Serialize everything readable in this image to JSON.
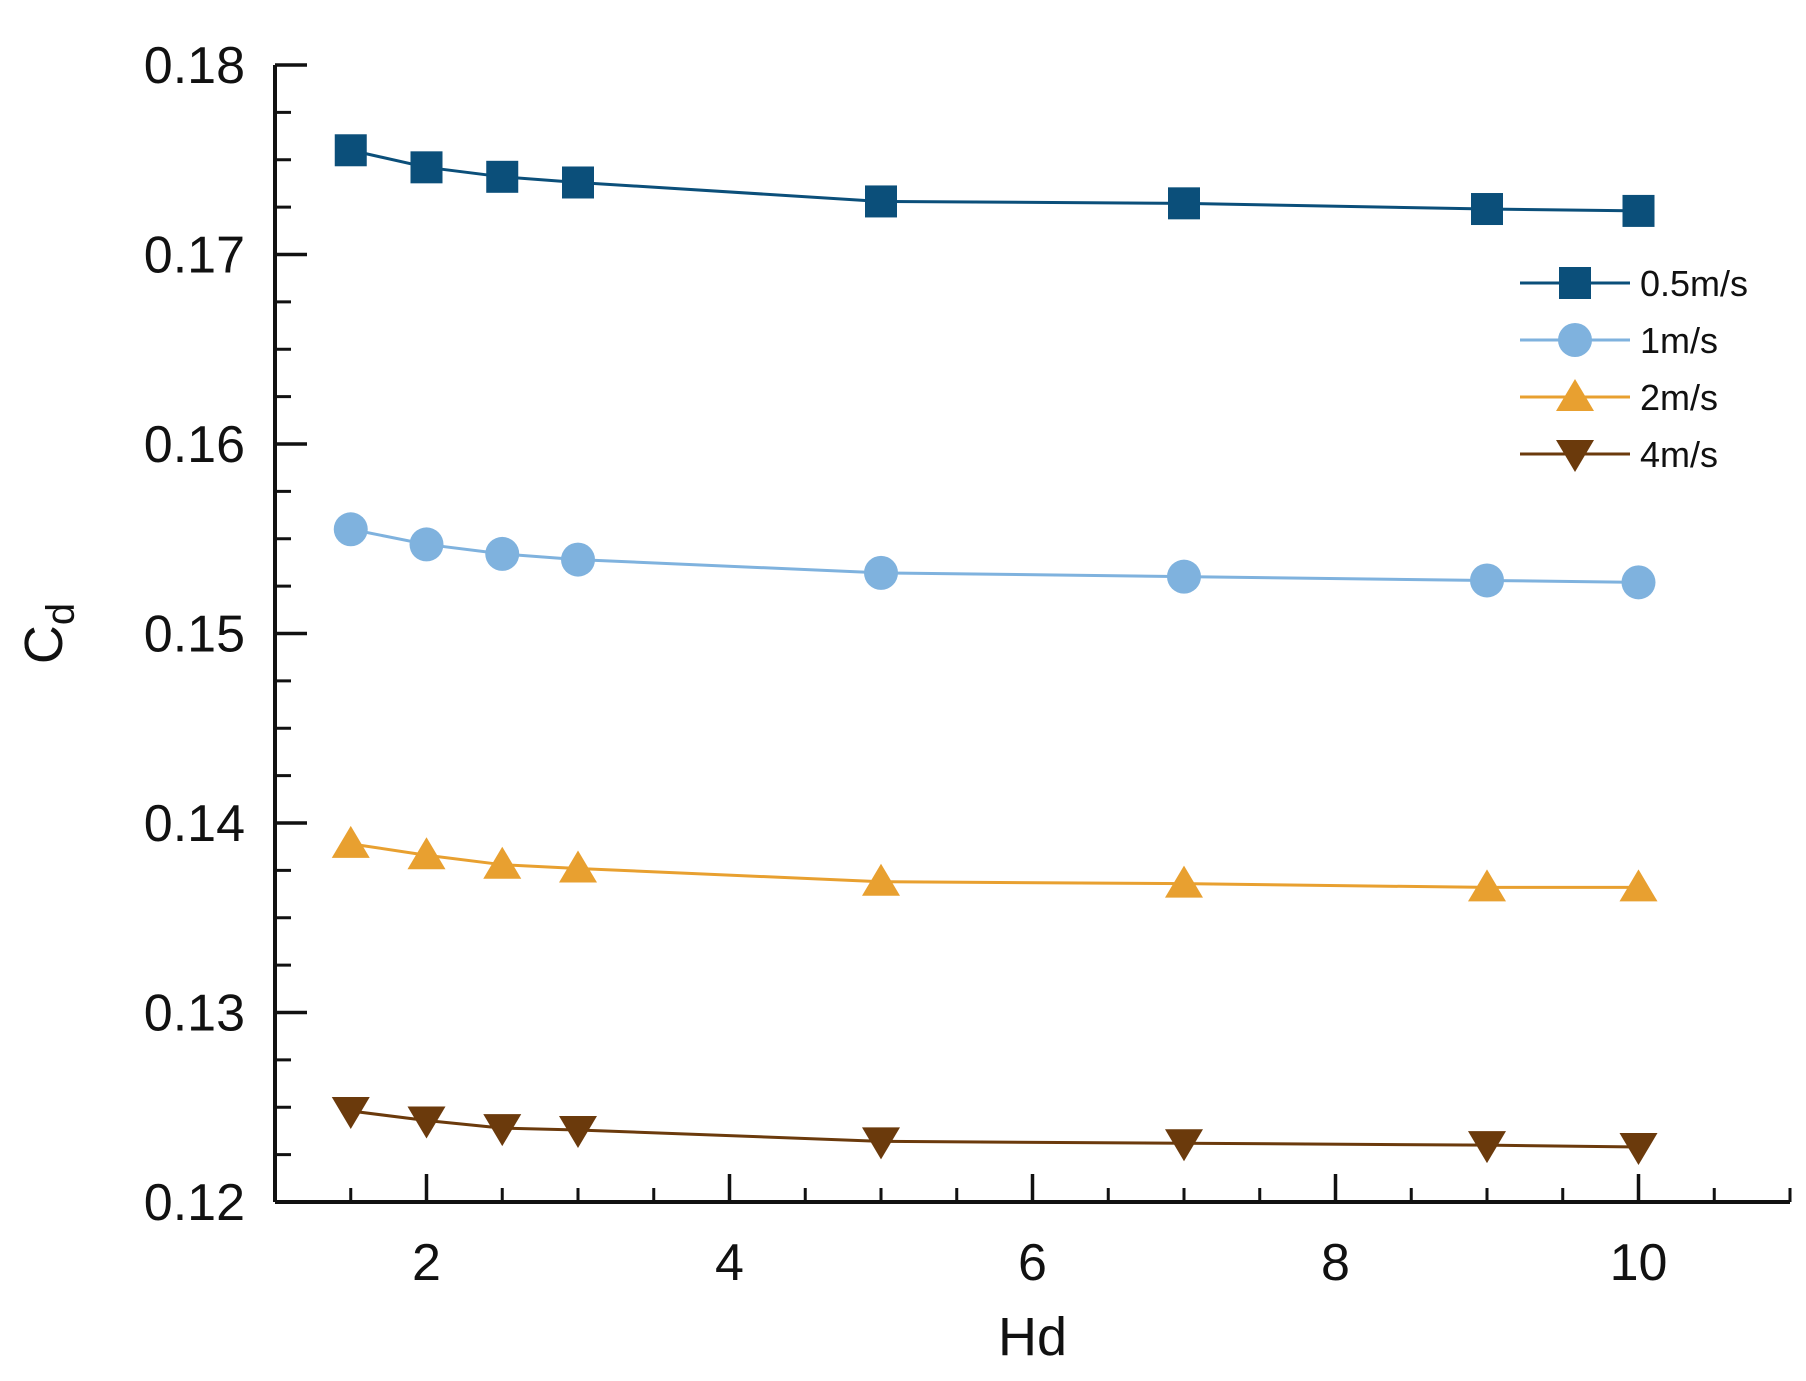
{
  "chart_data": {
    "type": "line",
    "title": "",
    "xlabel": "Hd",
    "ylabel": "C",
    "ylabel_subscript": "d",
    "xlim": [
      1.0,
      11.0
    ],
    "ylim": [
      0.12,
      0.18
    ],
    "x_ticks": [
      2,
      4,
      6,
      8,
      10
    ],
    "x_tick_labels": [
      "2",
      "4",
      "6",
      "8",
      "10"
    ],
    "x_minor_step": 0.5,
    "y_ticks": [
      0.12,
      0.13,
      0.14,
      0.15,
      0.16,
      0.17,
      0.18
    ],
    "y_tick_labels": [
      "0.12",
      "0.13",
      "0.14",
      "0.15",
      "0.16",
      "0.17",
      "0.18"
    ],
    "y_minor_step": 0.0025,
    "grid": false,
    "legend_position": "top-right",
    "x": [
      1.5,
      2,
      2.5,
      3,
      5,
      7,
      9,
      10
    ],
    "series": [
      {
        "name": "0.5m/s",
        "color": "#0b4f7a",
        "marker": "square",
        "values": [
          0.1755,
          0.1746,
          0.1741,
          0.1738,
          0.1728,
          0.1727,
          0.1724,
          0.1723
        ]
      },
      {
        "name": "1m/s",
        "color": "#7fb2de",
        "marker": "circle",
        "values": [
          0.1555,
          0.1547,
          0.1542,
          0.1539,
          0.1532,
          0.153,
          0.1528,
          0.1527
        ]
      },
      {
        "name": "2m/s",
        "color": "#e8a030",
        "marker": "triangle-up",
        "values": [
          0.1389,
          0.1383,
          0.1378,
          0.1376,
          0.1369,
          0.1368,
          0.1366,
          0.1366
        ]
      },
      {
        "name": "4m/s",
        "color": "#6b3a0c",
        "marker": "triangle-down",
        "values": [
          0.1248,
          0.1243,
          0.1239,
          0.1238,
          0.1232,
          0.1231,
          0.123,
          0.1229
        ]
      }
    ]
  }
}
